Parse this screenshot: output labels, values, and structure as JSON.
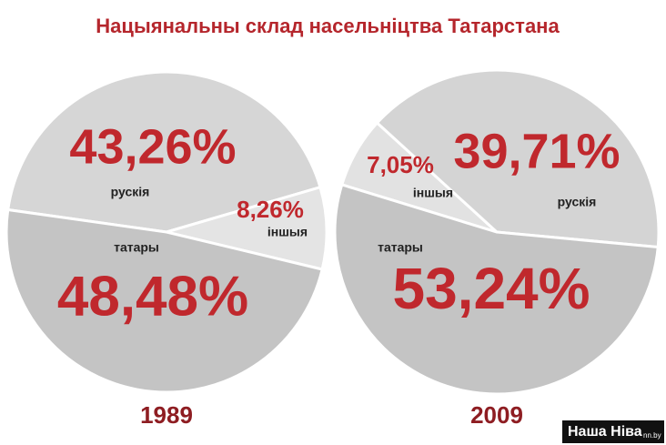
{
  "title": "Нацыянальны склад насельніцтва Татарстана",
  "logo": {
    "name": "Наша Ніва",
    "domain": "nn.by"
  },
  "chart_data": [
    {
      "type": "pie",
      "title": "1989",
      "categories": [
        "рускія",
        "іншыя",
        "татары"
      ],
      "values": [
        43.26,
        8.26,
        48.48
      ],
      "value_labels": [
        "43,26%",
        "8,26%",
        "48,48%"
      ],
      "colors": [
        "#d6d6d6",
        "#e4e4e4",
        "#c4c4c4"
      ]
    },
    {
      "type": "pie",
      "title": "2009",
      "categories": [
        "іншыя",
        "рускія",
        "татары"
      ],
      "values": [
        7.05,
        39.71,
        53.24
      ],
      "value_labels": [
        "7,05%",
        "39,71%",
        "53,24%"
      ],
      "colors": [
        "#e2e2e2",
        "#d4d4d4",
        "#c4c4c4"
      ]
    }
  ]
}
